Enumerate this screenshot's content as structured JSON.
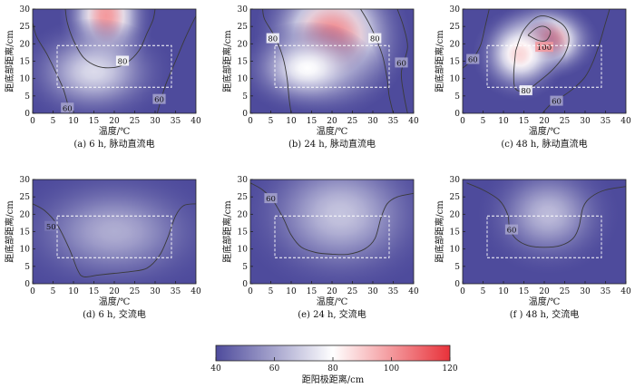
{
  "figure": {
    "colorbar": {
      "label": "距阳极距离/cm",
      "range": [
        40,
        120
      ],
      "ticks": [
        "40",
        "60",
        "80",
        "100",
        "120"
      ],
      "colors": [
        "#4e4b9c",
        "#ffffff",
        "#e8323a"
      ],
      "color_stops": [
        40,
        80,
        120
      ]
    },
    "panels_data": [
      {
        "caption": "(a)  6 h, 脉动直流电",
        "xlabel": "温度/℃",
        "ylabel": "距底部距离/cm",
        "xticks": [
          "0",
          "5",
          "10",
          "15",
          "20",
          "25",
          "30",
          "35",
          "40"
        ],
        "yticks": [
          "0",
          "5",
          "10",
          "15",
          "20",
          "25",
          "30"
        ],
        "contour_labels": [
          "80",
          "60",
          "60"
        ]
      },
      {
        "caption": "(b)  24 h, 脉动直流电",
        "xlabel": "温度/℃",
        "ylabel": "距底部距离/cm",
        "xticks": [
          "0",
          "5",
          "10",
          "15",
          "20",
          "25",
          "30",
          "35",
          "40"
        ],
        "yticks": [
          "0",
          "5",
          "10",
          "15",
          "20",
          "25",
          "30"
        ],
        "contour_labels": [
          "80",
          "80",
          "60"
        ]
      },
      {
        "caption": "(c)  48 h, 脉动直流电",
        "xlabel": "温度/℃",
        "ylabel": "距底部距离/cm",
        "xticks": [
          "0",
          "5",
          "10",
          "15",
          "20",
          "25",
          "30",
          "35",
          "40"
        ],
        "yticks": [
          "0",
          "5",
          "10",
          "15",
          "20",
          "25",
          "30"
        ],
        "contour_labels": [
          "100",
          "80",
          "60",
          "60"
        ]
      },
      {
        "caption": "(d)  6 h, 交流电",
        "xlabel": "温度/℃",
        "ylabel": "距底部距离/cm",
        "xticks": [
          "0",
          "5",
          "10",
          "15",
          "20",
          "25",
          "30",
          "35",
          "40"
        ],
        "yticks": [
          "0",
          "5",
          "10",
          "15",
          "20",
          "25",
          "30"
        ],
        "contour_labels": [
          "50"
        ]
      },
      {
        "caption": "(e)  24 h, 交流电",
        "xlabel": "温度/℃",
        "ylabel": "距底部距离/cm",
        "xticks": [
          "0",
          "5",
          "10",
          "15",
          "20",
          "25",
          "30",
          "35",
          "40"
        ],
        "yticks": [
          "0",
          "5",
          "10",
          "15",
          "20",
          "25",
          "30"
        ],
        "contour_labels": [
          "60"
        ]
      },
      {
        "caption": "(f )  48 h, 交流电",
        "xlabel": "温度/℃",
        "ylabel": "距底部距离/cm",
        "xticks": [
          "0",
          "5",
          "10",
          "15",
          "20",
          "25",
          "30",
          "35",
          "40"
        ],
        "yticks": [
          "0",
          "5",
          "10",
          "15",
          "20",
          "25",
          "30"
        ],
        "contour_labels": [
          "60"
        ]
      }
    ]
  },
  "chart_data": [
    {
      "type": "heatmap",
      "xlim": [
        0,
        40
      ],
      "ylim": [
        0,
        30
      ],
      "dashed_rect": {
        "x": [
          6,
          34
        ],
        "y": [
          7.5,
          19.5
        ]
      },
      "hotspots": [
        {
          "x": 18,
          "y": 28,
          "sx": 6,
          "sy": 11,
          "value": 100
        },
        {
          "x": 15,
          "y": 12,
          "sx": 10,
          "sy": 8,
          "value": 72
        }
      ],
      "contours": [
        {
          "level": 80,
          "label_pos": {
            "x": 22,
            "y": 15
          },
          "path": [
            [
              8,
              30
            ],
            [
              8.5,
              26
            ],
            [
              10,
              21
            ],
            [
              12.5,
              16
            ],
            [
              16,
              13.5
            ],
            [
              20,
              13.2
            ],
            [
              23,
              14.5
            ],
            [
              26,
              18
            ],
            [
              28,
              23
            ],
            [
              29.5,
              27
            ],
            [
              30,
              30
            ]
          ]
        },
        {
          "level": 60,
          "label_pos": {
            "x": 8.5,
            "y": 1.5
          },
          "path": [
            [
              0,
              26
            ],
            [
              1,
              22
            ],
            [
              3.5,
              17
            ],
            [
              6,
              11
            ],
            [
              7.5,
              7
            ],
            [
              8.5,
              3
            ],
            [
              9,
              0
            ]
          ]
        },
        {
          "level": 60,
          "label_pos": {
            "x": 31,
            "y": 4
          },
          "path": [
            [
              40,
              28
            ],
            [
              37.5,
              22
            ],
            [
              35,
              15
            ],
            [
              32.5,
              8
            ],
            [
              30.5,
              0
            ]
          ]
        }
      ]
    },
    {
      "type": "heatmap",
      "xlim": [
        0,
        40
      ],
      "ylim": [
        0,
        30
      ],
      "dashed_rect": {
        "x": [
          6,
          34
        ],
        "y": [
          7.5,
          19.5
        ]
      },
      "hotspots": [
        {
          "x": 20,
          "y": 22,
          "sx": 10,
          "sy": 12,
          "value": 104
        },
        {
          "x": 14,
          "y": 13,
          "sx": 9,
          "sy": 7,
          "value": 80
        }
      ],
      "contours": [
        {
          "level": 80,
          "label_pos": {
            "x": 5.5,
            "y": 21.5
          },
          "path": [
            [
              3,
              30
            ],
            [
              3.5,
              27
            ],
            [
              6,
              22
            ],
            [
              8,
              16
            ],
            [
              9,
              10
            ],
            [
              9.5,
              4
            ],
            [
              10,
              0
            ]
          ]
        },
        {
          "level": 80,
          "label_pos": {
            "x": 30.5,
            "y": 21.5
          },
          "path": [
            [
              27,
              30
            ],
            [
              29,
              26
            ],
            [
              31,
              21
            ],
            [
              32.5,
              16
            ],
            [
              33.5,
              10
            ],
            [
              34,
              5
            ],
            [
              35,
              0
            ]
          ]
        },
        {
          "level": 60,
          "label_pos": {
            "x": 37,
            "y": 14.5
          },
          "path": [
            [
              36,
              30
            ],
            [
              37.5,
              25
            ],
            [
              38.5,
              19
            ],
            [
              37,
              12
            ],
            [
              37.5,
              6
            ],
            [
              38.5,
              0
            ]
          ]
        }
      ]
    },
    {
      "type": "heatmap",
      "xlim": [
        0,
        40
      ],
      "ylim": [
        0,
        30
      ],
      "dashed_rect": {
        "x": [
          6,
          34
        ],
        "y": [
          7.5,
          19.5
        ]
      },
      "hotspots": [
        {
          "x": 20,
          "y": 21,
          "sx": 7,
          "sy": 6,
          "value": 110
        },
        {
          "x": 14,
          "y": 17,
          "sx": 6,
          "sy": 7,
          "value": 88
        }
      ],
      "contours": [
        {
          "level": 100,
          "label_pos": {
            "x": 20,
            "y": 19
          },
          "path": [
            [
              16,
              22.5
            ],
            [
              18,
              24.5
            ],
            [
              20,
              25
            ],
            [
              21.5,
              23.5
            ],
            [
              20.5,
              21
            ],
            [
              18.5,
              21
            ],
            [
              16,
              22.5
            ]
          ]
        },
        {
          "level": 80,
          "label_pos": {
            "x": 15.5,
            "y": 6.5
          },
          "path": [
            [
              13,
              18
            ],
            [
              15,
              24
            ],
            [
              19,
              28
            ],
            [
              24,
              26
            ],
            [
              26,
              22
            ],
            [
              25,
              17
            ],
            [
              22,
              12.5
            ],
            [
              18.5,
              9
            ],
            [
              15.5,
              6.5
            ],
            [
              13,
              7
            ],
            [
              12.5,
              11
            ],
            [
              13,
              18
            ]
          ]
        },
        {
          "level": 60,
          "label_pos": {
            "x": 2.5,
            "y": 15.5
          },
          "path": [
            [
              0,
              13
            ],
            [
              1.5,
              14.5
            ],
            [
              3,
              16.5
            ],
            [
              4.5,
              20
            ],
            [
              5.5,
              25
            ],
            [
              6.5,
              30
            ]
          ]
        },
        {
          "level": 60,
          "label_pos": {
            "x": 23,
            "y": 3.5
          },
          "path": [
            [
              19.5,
              0
            ],
            [
              21.5,
              2.5
            ],
            [
              24,
              4.5
            ],
            [
              27,
              7
            ],
            [
              30,
              10.5
            ],
            [
              32,
              15
            ],
            [
              33.5,
              20
            ],
            [
              35,
              26
            ],
            [
              36,
              30
            ]
          ]
        }
      ]
    },
    {
      "type": "heatmap",
      "xlim": [
        0,
        40
      ],
      "ylim": [
        0,
        30
      ],
      "dashed_rect": {
        "x": [
          6,
          34
        ],
        "y": [
          7.5,
          19.5
        ]
      },
      "hotspots": [
        {
          "x": 20,
          "y": 15,
          "sx": 14,
          "sy": 10,
          "value": 62
        }
      ],
      "contours": [
        {
          "level": 50,
          "label_pos": {
            "x": 4.5,
            "y": 16.5
          },
          "path": [
            [
              0,
              23
            ],
            [
              3,
              21
            ],
            [
              6,
              17
            ],
            [
              9,
              10
            ],
            [
              11,
              4
            ],
            [
              12.5,
              2
            ],
            [
              16,
              2.5
            ],
            [
              20,
              3
            ],
            [
              24,
              3.5
            ],
            [
              28,
              4.5
            ],
            [
              31,
              8
            ],
            [
              33,
              13
            ],
            [
              35,
              19.5
            ],
            [
              37,
              22.5
            ],
            [
              40,
              23
            ]
          ]
        }
      ]
    },
    {
      "type": "heatmap",
      "xlim": [
        0,
        40
      ],
      "ylim": [
        0,
        30
      ],
      "dashed_rect": {
        "x": [
          6,
          34
        ],
        "y": [
          7.5,
          19.5
        ]
      },
      "hotspots": [
        {
          "x": 22,
          "y": 20,
          "sx": 13,
          "sy": 12,
          "value": 67
        }
      ],
      "contours": [
        {
          "level": 60,
          "label_pos": {
            "x": 5,
            "y": 24.5
          },
          "path": [
            [
              0,
              29
            ],
            [
              3,
              27
            ],
            [
              5.5,
              24
            ],
            [
              8,
              19
            ],
            [
              10,
              14
            ],
            [
              12.5,
              10.5
            ],
            [
              16,
              9
            ],
            [
              20,
              8.5
            ],
            [
              24,
              8.5
            ],
            [
              28,
              10
            ],
            [
              30.5,
              13
            ],
            [
              32,
              19
            ],
            [
              33.5,
              23
            ],
            [
              36,
              25
            ],
            [
              40,
              26
            ]
          ]
        }
      ]
    },
    {
      "type": "heatmap",
      "xlim": [
        0,
        40
      ],
      "ylim": [
        0,
        30
      ],
      "dashed_rect": {
        "x": [
          6,
          34
        ],
        "y": [
          7.5,
          19.5
        ]
      },
      "hotspots": [
        {
          "x": 21,
          "y": 20,
          "sx": 9,
          "sy": 9,
          "value": 65
        }
      ],
      "contours": [
        {
          "level": 60,
          "label_pos": {
            "x": 12,
            "y": 15.5
          },
          "path": [
            [
              1,
              29
            ],
            [
              5,
              27
            ],
            [
              9,
              24
            ],
            [
              11,
              20
            ],
            [
              11.5,
              16
            ],
            [
              13,
              13
            ],
            [
              16,
              11
            ],
            [
              20,
              10.5
            ],
            [
              24,
              11
            ],
            [
              27,
              13
            ],
            [
              28.5,
              16.5
            ],
            [
              29.5,
              22
            ],
            [
              31.5,
              25
            ],
            [
              35,
              27
            ],
            [
              40,
              28
            ]
          ]
        }
      ]
    }
  ]
}
